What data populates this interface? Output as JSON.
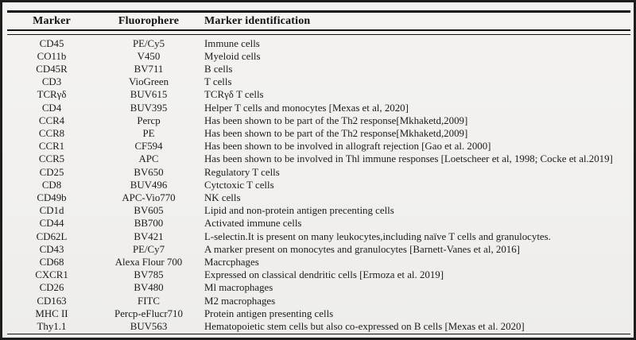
{
  "table": {
    "columns": [
      "Marker",
      "Fluorophere",
      "Marker identification"
    ],
    "rows": [
      [
        "CD45",
        "PE/Cy5",
        "Immune cells"
      ],
      [
        "CO11b",
        "V450",
        "Myeloid cells"
      ],
      [
        "CD45R",
        "BV711",
        "B cells"
      ],
      [
        "CD3",
        "VioGreen",
        "T cells"
      ],
      [
        "TCRγδ",
        "BUV615",
        "TCRγδ T cells"
      ],
      [
        "CD4",
        "BUV395",
        "Helper T cells and monocytes [Mexas et al, 2020]"
      ],
      [
        "CCR4",
        "Percp",
        "Has been shown to be part of the Th2 response[Mkhaketd,2009]"
      ],
      [
        "CCR8",
        "PE",
        "Has been shown to be part of the Th2 response[Mkhaketd,2009]"
      ],
      [
        "CCR1",
        "CF594",
        "Has been shown to be involved in allograft rejection [Gao et al. 2000]"
      ],
      [
        "CCR5",
        "APC",
        "Has been shown to be involved in Thl immune responses [Loetscheer et al, 1998; Cocke et al.2019]"
      ],
      [
        "CD25",
        "BV650",
        "Regulatory T cells"
      ],
      [
        "CD8",
        "BUV496",
        "Cytctoxic T cells"
      ],
      [
        "CD49b",
        "APC-Vio770",
        "NK cells"
      ],
      [
        "CD1d",
        "BV605",
        "Lipid and non-protein antigen precenting cells"
      ],
      [
        "CD44",
        "BB700",
        "Activated immune cells"
      ],
      [
        "CD62L",
        "BV421",
        "L-selectin.It is present on many leukocytes,including naïve T cells and granulocytes."
      ],
      [
        "CD43",
        "PE/Cy7",
        "A marker present on monocytes and granulocytes [Barnett-Vanes et al, 2016]"
      ],
      [
        "CD68",
        "Alexa Flour 700",
        "Macrcphages"
      ],
      [
        "CXCR1",
        "BV785",
        "Expressed on classical dendritic cells [Ermoza et al. 2019]"
      ],
      [
        "CD26",
        "BV480",
        "Ml macrophages"
      ],
      [
        "CD163",
        "FITC",
        "M2 macrophages"
      ],
      [
        "MHC II",
        "Percp-eFlucr710",
        "Protein antigen presenting cells"
      ],
      [
        "Thy1.1",
        "BUV563",
        "Hematopoietic stem cells but also co-expressed on B cells [Mexas et al. 2020]"
      ]
    ]
  },
  "colors": {
    "background": "#f2f1ef",
    "text": "#1c1c1c",
    "rule": "#121212"
  }
}
